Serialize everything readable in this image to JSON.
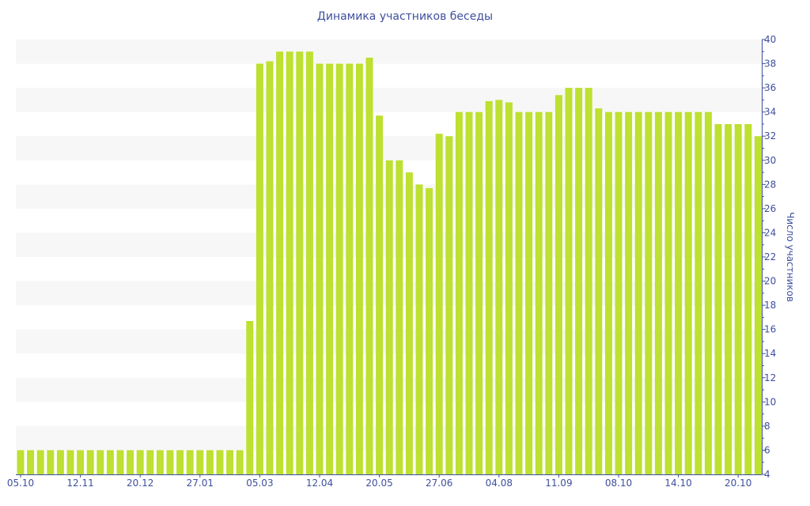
{
  "chart_data": {
    "type": "bar",
    "title": "Динамика участников беседы",
    "xlabel": "",
    "ylabel": "Число участников",
    "ylim": [
      4,
      40
    ],
    "yticks": [
      4,
      6,
      8,
      10,
      12,
      14,
      16,
      18,
      20,
      22,
      24,
      26,
      28,
      30,
      32,
      34,
      36,
      38,
      40
    ],
    "y_axis_position": "right",
    "grid": "alternating horizontal bands",
    "x_tick_labels": [
      {
        "bar": 0,
        "label": "05.10"
      },
      {
        "bar": 6,
        "label": "12.11"
      },
      {
        "bar": 12,
        "label": "20.12"
      },
      {
        "bar": 18,
        "label": "27.01"
      },
      {
        "bar": 24,
        "label": "05.03"
      },
      {
        "bar": 30,
        "label": "12.04"
      },
      {
        "bar": 36,
        "label": "20.05"
      },
      {
        "bar": 42,
        "label": "27.06"
      },
      {
        "bar": 48,
        "label": "04.08"
      },
      {
        "bar": 54,
        "label": "11.09"
      },
      {
        "bar": 60,
        "label": "08.10"
      },
      {
        "bar": 66,
        "label": "14.10"
      },
      {
        "bar": 72,
        "label": "20.10"
      }
    ],
    "values": [
      6,
      6,
      6,
      6,
      6,
      6,
      6,
      6,
      6,
      6,
      6,
      6,
      6,
      6,
      6,
      6,
      6,
      6,
      6,
      6,
      6,
      6,
      6,
      16.7,
      38,
      38.2,
      39,
      39,
      39,
      39,
      38,
      38,
      38,
      38,
      38,
      38.5,
      33.7,
      30,
      30,
      29,
      28,
      27.7,
      32.2,
      32,
      34,
      34,
      34,
      34.9,
      35,
      34.8,
      34,
      34,
      34,
      34,
      35.4,
      36,
      36,
      36,
      34.3,
      34,
      34,
      34,
      34,
      34,
      34,
      34,
      34,
      34,
      34,
      34,
      33,
      33,
      33,
      33,
      32
    ],
    "colors": {
      "bar": "#bde031",
      "band": "#f7f7f7",
      "axis": "#3e4f9e"
    }
  }
}
